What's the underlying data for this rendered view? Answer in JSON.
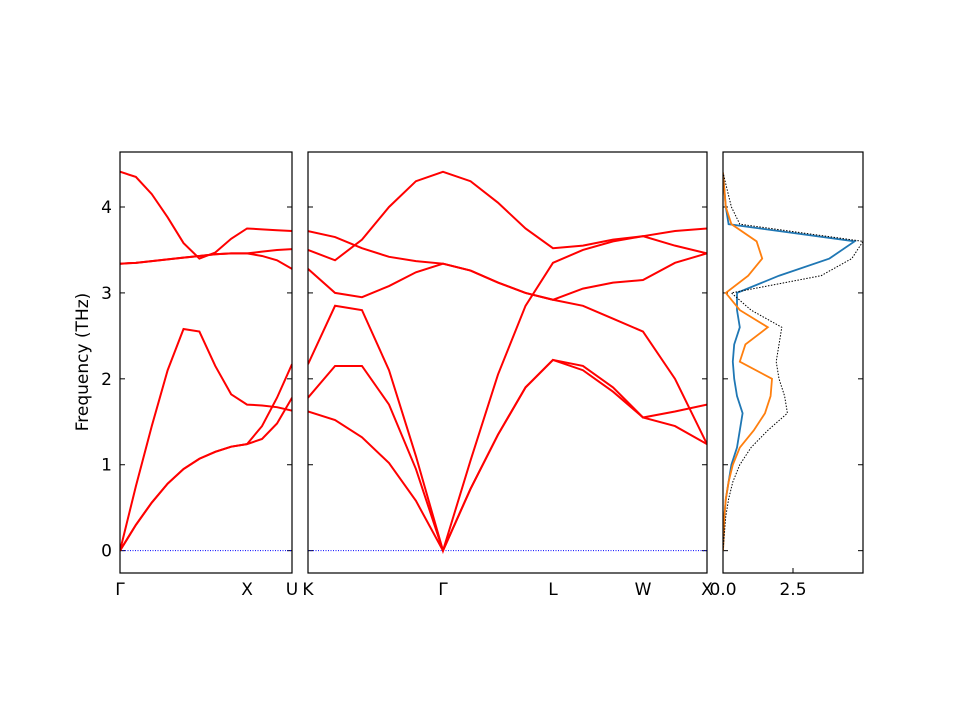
{
  "chart_data": [
    {
      "type": "line",
      "ylabel": "Frequency (THz)",
      "xlim": [
        0,
        1.354
      ],
      "ylim": [
        -0.26,
        4.64
      ],
      "yticks": [
        0,
        1,
        2,
        3,
        4
      ],
      "xticks": [
        {
          "value": 0,
          "label": "Γ"
        },
        {
          "value": 1,
          "label": "X"
        },
        {
          "value": 1.354,
          "label": "U"
        }
      ],
      "hline": {
        "value": 0,
        "color": "#0000ff"
      },
      "x": [
        0,
        0.125,
        0.25,
        0.375,
        0.5,
        0.625,
        0.75,
        0.875,
        1,
        1.118,
        1.236,
        1.354
      ],
      "series": [
        {
          "color": "#ff0000",
          "values": [
            0,
            0.3,
            0.56,
            0.78,
            0.95,
            1.07,
            1.15,
            1.21,
            1.24,
            1.3,
            1.48,
            1.78
          ]
        },
        {
          "color": "#ff0000",
          "values": [
            0,
            0.3,
            0.56,
            0.78,
            0.95,
            1.07,
            1.15,
            1.21,
            1.24,
            1.45,
            1.78,
            2.17
          ]
        },
        {
          "color": "#ff0000",
          "values": [
            0,
            0.75,
            1.45,
            2.1,
            2.58,
            2.55,
            2.15,
            1.82,
            1.7,
            1.69,
            1.67,
            1.63
          ]
        },
        {
          "color": "#ff0000",
          "values": [
            3.34,
            3.35,
            3.37,
            3.39,
            3.41,
            3.43,
            3.45,
            3.46,
            3.46,
            3.48,
            3.5,
            3.51
          ]
        },
        {
          "color": "#ff0000",
          "values": [
            3.34,
            3.35,
            3.37,
            3.39,
            3.41,
            3.43,
            3.45,
            3.46,
            3.46,
            3.43,
            3.38,
            3.28
          ]
        },
        {
          "color": "#ff0000",
          "values": [
            4.41,
            4.35,
            4.15,
            3.88,
            3.58,
            3.4,
            3.47,
            3.63,
            3.75,
            3.74,
            3.73,
            3.72
          ]
        }
      ]
    },
    {
      "type": "line",
      "sharey": true,
      "xlim": [
        1.354,
        4.496
      ],
      "xticks": [
        {
          "value": 1.354,
          "label": "K"
        },
        {
          "value": 2.417,
          "label": "Γ"
        },
        {
          "value": 3.283,
          "label": "L"
        },
        {
          "value": 3.992,
          "label": "W"
        },
        {
          "value": 4.496,
          "label": "X"
        }
      ],
      "hline": {
        "value": 0,
        "color": "#0000ff"
      },
      "x": [
        1.354,
        1.567,
        1.779,
        1.992,
        2.204,
        2.417,
        2.634,
        2.85,
        3.067,
        3.283,
        3.519,
        3.756,
        3.992,
        4.244,
        4.496
      ],
      "series": [
        {
          "color": "#ff0000",
          "values": [
            1.62,
            1.52,
            1.32,
            1.02,
            0.58,
            0,
            0.72,
            1.35,
            1.9,
            2.22,
            2.1,
            1.85,
            1.55,
            1.45,
            1.24
          ]
        },
        {
          "color": "#ff0000",
          "values": [
            1.78,
            2.15,
            2.15,
            1.7,
            0.95,
            0,
            0.72,
            1.35,
            1.9,
            2.22,
            2.15,
            1.9,
            1.55,
            1.62,
            1.7
          ]
        },
        {
          "color": "#ff0000",
          "values": [
            2.17,
            2.85,
            2.8,
            2.1,
            1.1,
            0,
            1.05,
            2.05,
            2.85,
            3.35,
            3.5,
            3.6,
            3.66,
            3.72,
            3.75
          ]
        },
        {
          "color": "#ff0000",
          "values": [
            3.28,
            3.0,
            2.95,
            3.08,
            3.24,
            3.34,
            3.26,
            3.12,
            3.0,
            2.92,
            2.85,
            2.7,
            2.55,
            2.0,
            1.24
          ]
        },
        {
          "color": "#ff0000",
          "values": [
            3.5,
            3.38,
            3.62,
            4.0,
            4.3,
            4.41,
            4.3,
            4.05,
            3.75,
            3.52,
            3.55,
            3.62,
            3.66,
            3.55,
            3.46
          ]
        },
        {
          "color": "#ff0000",
          "values": [
            3.72,
            3.65,
            3.52,
            3.42,
            3.37,
            3.34,
            3.26,
            3.12,
            3.0,
            2.92,
            3.05,
            3.12,
            3.15,
            3.35,
            3.46
          ]
        }
      ]
    },
    {
      "type": "dos",
      "sharey": true,
      "xlim": [
        0,
        5.0
      ],
      "xticks": [
        {
          "value": 0,
          "label": "0.0"
        },
        {
          "value": 2.5,
          "label": "2.5"
        }
      ],
      "y": [
        0,
        0.2,
        0.4,
        0.6,
        0.8,
        1.0,
        1.2,
        1.4,
        1.6,
        1.8,
        2.0,
        2.2,
        2.4,
        2.6,
        2.8,
        3.0,
        3.2,
        3.4,
        3.6,
        3.8,
        4.0,
        4.2,
        4.4
      ],
      "series": [
        {
          "color": "#1f77b4",
          "dash": "solid",
          "values": [
            0,
            0.02,
            0.05,
            0.1,
            0.2,
            0.3,
            0.5,
            0.6,
            0.7,
            0.5,
            0.4,
            0.35,
            0.4,
            0.6,
            0.5,
            0.5,
            2.0,
            3.8,
            4.7,
            0.2,
            0.1,
            0.05,
            0
          ]
        },
        {
          "color": "#ff7f0e",
          "dash": "solid",
          "values": [
            0,
            0.03,
            0.05,
            0.1,
            0.2,
            0.35,
            0.6,
            1.1,
            1.5,
            1.7,
            1.75,
            0.6,
            0.8,
            1.6,
            0.6,
            0.1,
            0.9,
            1.4,
            1.2,
            0.3,
            0.1,
            0.05,
            0
          ]
        },
        {
          "color": "#000000",
          "dash": "dotted",
          "values": [
            0,
            0.05,
            0.1,
            0.2,
            0.35,
            0.6,
            1.0,
            1.6,
            2.3,
            2.2,
            2.0,
            1.9,
            2.0,
            2.1,
            1.0,
            0.3,
            3.5,
            4.6,
            5.0,
            0.6,
            0.3,
            0.15,
            0
          ]
        }
      ]
    }
  ]
}
